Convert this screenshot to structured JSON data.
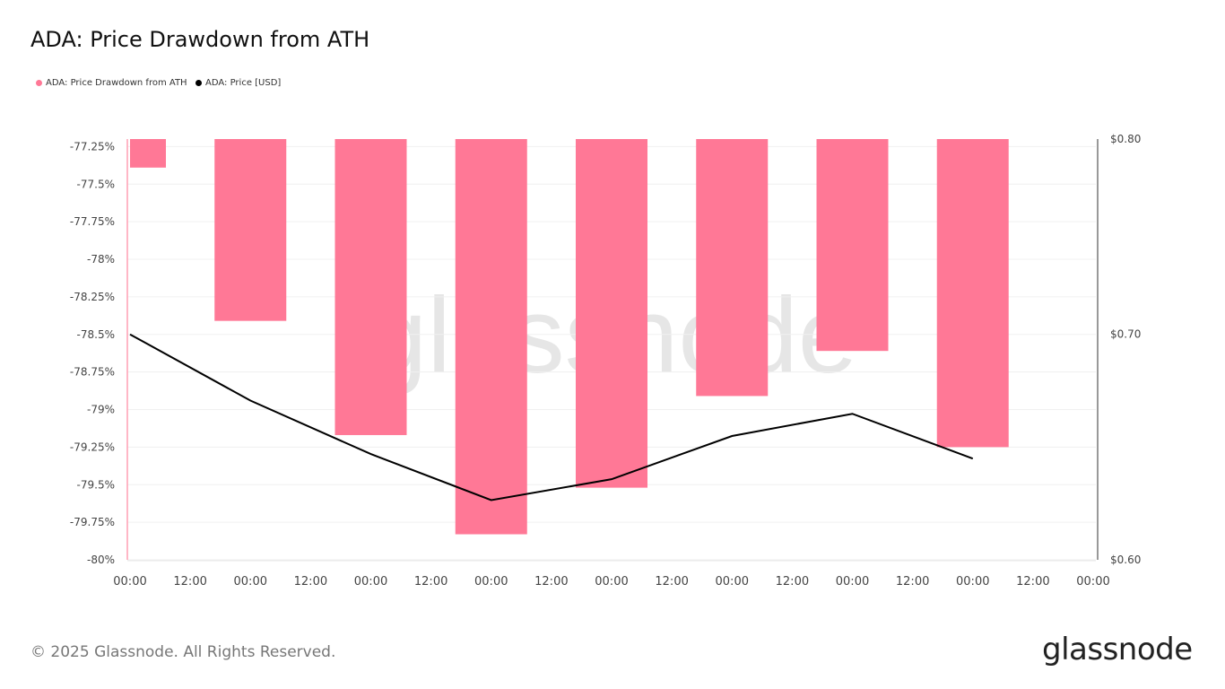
{
  "chart_data": {
    "type": "bar+line",
    "title": "ADA: Price Drawdown from ATH",
    "legend": [
      {
        "label": "ADA: Price Drawdown from ATH",
        "color": "#ff7896"
      },
      {
        "label": "ADA: Price [USD]",
        "color": "#000000"
      }
    ],
    "legend_placement": "top-left",
    "x_ticks": [
      "00:00",
      "12:00",
      "00:00",
      "12:00",
      "00:00",
      "12:00",
      "00:00",
      "12:00",
      "00:00",
      "12:00",
      "00:00",
      "12:00",
      "00:00",
      "12:00",
      "00:00",
      "12:00",
      "00:00"
    ],
    "x_hours": [
      0,
      24,
      48,
      72,
      96,
      120,
      144,
      168
    ],
    "drawdown_series": {
      "name": "ADA: Price Drawdown from ATH",
      "values": [
        -77.39,
        -78.41,
        -79.17,
        -79.83,
        -79.52,
        -78.91,
        -78.61,
        -79.25
      ],
      "ylim": [
        -80,
        -77.2
      ],
      "ticks": [
        -77.25,
        -77.5,
        -77.75,
        -78,
        -78.25,
        -78.5,
        -78.75,
        -79,
        -79.25,
        -79.5,
        -79.75,
        -80
      ],
      "tick_labels": [
        "-77.25%",
        "-77.5%",
        "-77.75%",
        "-78%",
        "-78.25%",
        "-78.5%",
        "-78.75%",
        "-79%",
        "-79.25%",
        "-79.5%",
        "-79.75%",
        "-80%"
      ]
    },
    "price_series": {
      "name": "ADA: Price [USD]",
      "values": [
        0.7,
        0.669,
        0.645,
        0.625,
        0.634,
        0.653,
        0.663,
        0.643
      ],
      "scale": "log",
      "ylim": [
        0.6,
        0.8
      ],
      "ticks": [
        0.8,
        0.7,
        0.6
      ],
      "tick_labels": [
        "$0.80",
        "$0.70",
        "$0.60"
      ]
    },
    "grid": true
  },
  "footer": "© 2025 Glassnode. All Rights Reserved.",
  "logo": "glassnode",
  "watermark": "glassnode"
}
